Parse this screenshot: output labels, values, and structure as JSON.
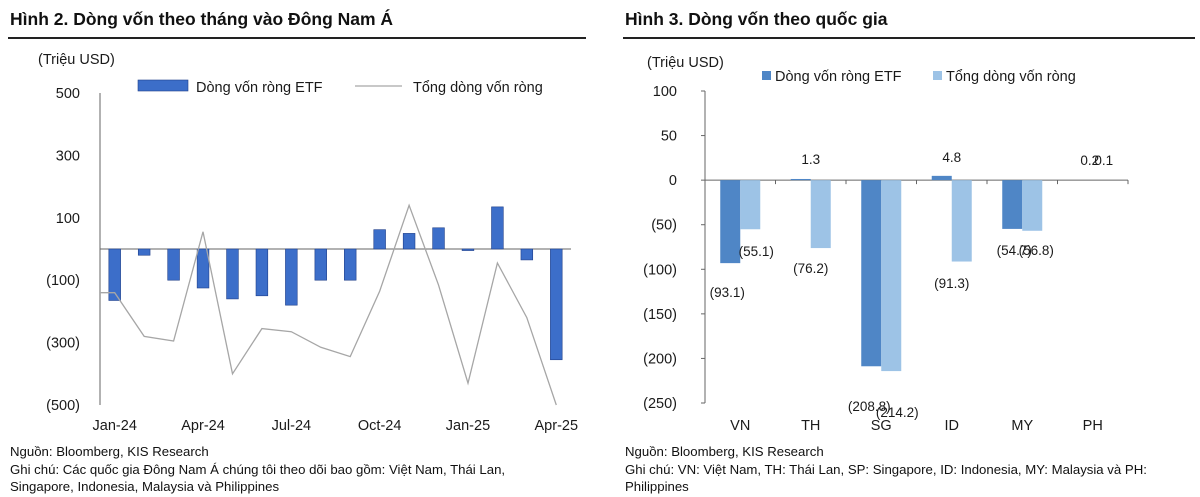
{
  "charts": [
    {
      "title": "Hình 2. Dòng vốn theo tháng vào Đông Nam Á",
      "source": "Nguồn: Bloomberg, KIS Research",
      "note": "Ghi chú: Các quốc gia Đông Nam Á chúng tôi theo dõi bao gồm: Việt Nam, Thái Lan, Singapore, Indonesia, Malaysia và Philippines"
    },
    {
      "title": "Hình 3. Dòng vốn theo quốc gia",
      "source": "Nguồn: Bloomberg, KIS Research",
      "note": "Ghi chú: VN: Việt Nam, TH: Thái Lan, SP: Singapore, ID: Indonesia, MY: Malaysia và PH: Philippines"
    }
  ],
  "colors": {
    "bar_dark": "#3c6ec9",
    "bar_dark_edge": "#1f3f8a",
    "bar_mid": "#4f86c6",
    "bar_light": "#9dc3e6",
    "line_gray": "#a6a6a6"
  },
  "chart_data": [
    {
      "type": "bar",
      "ylabel": "(Triệu USD)",
      "ylim": [
        -500,
        500
      ],
      "yticks": [
        500,
        300,
        100,
        -100,
        -300,
        -500
      ],
      "ytick_labels": [
        "500",
        "300",
        "100",
        "(100)",
        "(300)",
        "(500)"
      ],
      "categories": [
        "Jan-24",
        "Feb-24",
        "Mar-24",
        "Apr-24",
        "May-24",
        "Jun-24",
        "Jul-24",
        "Aug-24",
        "Sep-24",
        "Oct-24",
        "Nov-24",
        "Dec-24",
        "Jan-25",
        "Feb-25",
        "Mar-25",
        "Apr-25"
      ],
      "xtick_labels": [
        "Jan-24",
        "Apr-24",
        "Jul-24",
        "Oct-24",
        "Jan-25",
        "Apr-25"
      ],
      "xtick_index": [
        0,
        3,
        6,
        9,
        12,
        15
      ],
      "series": [
        {
          "name": "Dòng vốn ròng ETF",
          "kind": "bar",
          "values": [
            -165,
            -20,
            -100,
            -125,
            -160,
            -150,
            -180,
            -100,
            -100,
            62,
            50,
            68,
            -5,
            135,
            -35,
            -355
          ]
        },
        {
          "name": "Tổng dòng vốn ròng",
          "kind": "line",
          "values": [
            -140,
            -280,
            -295,
            55,
            -400,
            -255,
            -265,
            -315,
            -345,
            -135,
            140,
            -115,
            -430,
            -45,
            -220,
            -500
          ]
        }
      ],
      "legend_position": "top"
    },
    {
      "type": "bar",
      "ylabel": "(Triệu USD)",
      "ylim": [
        -250,
        100
      ],
      "yticks": [
        100,
        50,
        0,
        -50,
        -100,
        -150,
        -200,
        -250
      ],
      "ytick_labels": [
        "100",
        "50",
        "0",
        "(50)",
        "(100)",
        "(150)",
        "(200)",
        "(250)"
      ],
      "categories": [
        "VN",
        "TH",
        "SG",
        "ID",
        "MY",
        "PH"
      ],
      "series": [
        {
          "name": "Dòng vốn ròng ETF",
          "values": [
            -93.1,
            1.3,
            -208.8,
            4.8,
            -54.7,
            0.2
          ],
          "labels": [
            "(93.1)",
            "1.3",
            "(208.8)",
            "4.8",
            "(54.7)",
            "0.2"
          ]
        },
        {
          "name": "Tổng dòng vốn ròng",
          "values": [
            -55.1,
            -76.2,
            -214.2,
            -91.3,
            -56.8,
            0.1
          ],
          "labels": [
            "(55.1)",
            "(76.2)",
            "(214.2)",
            "(91.3)",
            "(56.8)",
            "0.1"
          ]
        }
      ],
      "legend_position": "top"
    }
  ]
}
